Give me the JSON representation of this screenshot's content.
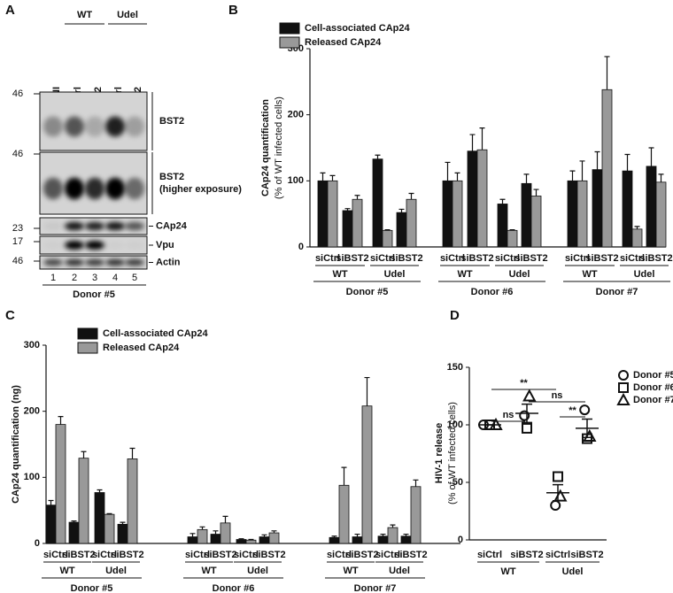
{
  "panel_labels": [
    "A",
    "B",
    "C",
    "D"
  ],
  "blot": {
    "conditions": [
      "WT",
      "Udel"
    ],
    "lanes": [
      "NI",
      "siCtrl",
      "siBST2",
      "siCtrl",
      "siBST2"
    ],
    "markers": [
      "46",
      "46",
      "23",
      "17",
      "46"
    ],
    "bands": [
      [
        "BST2"
      ],
      [
        "BST2",
        "(higher exposure)"
      ],
      [
        "CAp24"
      ],
      [
        "Vpu"
      ],
      [
        "Actin"
      ]
    ],
    "lane_numbers": [
      "1",
      "2",
      "3",
      "4",
      "5"
    ],
    "donor": "Donor #5"
  },
  "chart_data": [
    {
      "type": "bar",
      "ylabel": [
        "CAp24 quantification",
        "(% of WT infected cells)"
      ],
      "categories": [
        "siCtrl",
        "siBST2",
        "siCtrl",
        "siBST2",
        "siCtrl",
        "siBST2",
        "siCtrl",
        "siBST2",
        "siCtrl",
        "siBST2",
        "siCtrl",
        "siBST2"
      ],
      "conditions": [
        "WT",
        "Udel",
        "WT",
        "Udel",
        "WT",
        "Udel"
      ],
      "donors": [
        "Donor #5",
        "Donor #6",
        "Donor #7"
      ],
      "series": [
        {
          "name": "Cell-associated CAp24",
          "color": "#111111",
          "values": [
            100,
            55,
            133,
            52,
            100,
            145,
            65,
            96,
            100,
            117,
            115,
            122
          ],
          "errors": [
            12,
            3,
            6,
            5,
            28,
            25,
            7,
            14,
            15,
            27,
            25,
            28
          ]
        },
        {
          "name": "Released CAp24",
          "color": "#999999",
          "values": [
            100,
            72,
            25,
            72,
            100,
            147,
            25,
            77,
            100,
            238,
            27,
            98
          ],
          "errors": [
            8,
            6,
            1,
            9,
            12,
            33,
            1,
            10,
            30,
            50,
            4,
            12
          ]
        }
      ],
      "ylim": [
        0,
        300
      ],
      "yticks": [
        0,
        100,
        200,
        300
      ]
    },
    {
      "type": "bar",
      "ylabel": [
        "CAp24 quantification (ng)"
      ],
      "categories": [
        "siCtrl",
        "siBST2",
        "siCtrl",
        "siBST2",
        "siCtrl",
        "siBST2",
        "siCtrl",
        "siBST2",
        "siCtrl",
        "siBST2",
        "siCtrl",
        "siBST2"
      ],
      "conditions": [
        "WT",
        "Udel",
        "WT",
        "Udel",
        "WT",
        "Udel"
      ],
      "donors": [
        "Donor #5",
        "Donor #6",
        "Donor #7"
      ],
      "series": [
        {
          "name": "Cell-associated CAp24",
          "color": "#111111",
          "values": [
            58,
            32,
            77,
            29,
            10,
            14,
            6,
            10,
            9,
            10,
            11,
            11
          ],
          "errors": [
            7,
            2,
            4,
            3,
            5,
            5,
            1,
            3,
            2,
            4,
            3,
            3
          ]
        },
        {
          "name": "Released CAp24",
          "color": "#999999",
          "values": [
            180,
            129,
            44,
            128,
            21,
            31,
            5,
            16,
            88,
            208,
            24,
            86
          ],
          "errors": [
            12,
            10,
            1,
            16,
            4,
            10,
            1,
            3,
            27,
            43,
            4,
            10
          ]
        }
      ],
      "ylim": [
        0,
        300
      ],
      "yticks": [
        0,
        100,
        200,
        300
      ]
    },
    {
      "type": "scatter",
      "ylabel": [
        "HIV-1 release",
        "(% of WT infected cells)"
      ],
      "categories": [
        "siCtrl",
        "siBST2",
        "siCtrl",
        "siBST2"
      ],
      "conditions": [
        "WT",
        "Udel"
      ],
      "series": [
        {
          "name": "Donor #5",
          "marker": "circle",
          "color": "#111111",
          "values": [
            100,
            108,
            30,
            113
          ]
        },
        {
          "name": "Donor #6",
          "marker": "square",
          "color": "#111111",
          "values": [
            100,
            97,
            55,
            88
          ]
        },
        {
          "name": "Donor #7",
          "marker": "triangle",
          "color": "#111111",
          "values": [
            100,
            125,
            38,
            90
          ]
        }
      ],
      "mean": [
        100,
        110,
        41,
        97
      ],
      "errors": [
        0,
        8,
        7,
        8
      ],
      "annotations": [
        "**",
        "ns",
        "ns",
        "**"
      ],
      "ylim": [
        0,
        150
      ],
      "yticks": [
        0,
        50,
        100,
        150
      ]
    }
  ]
}
